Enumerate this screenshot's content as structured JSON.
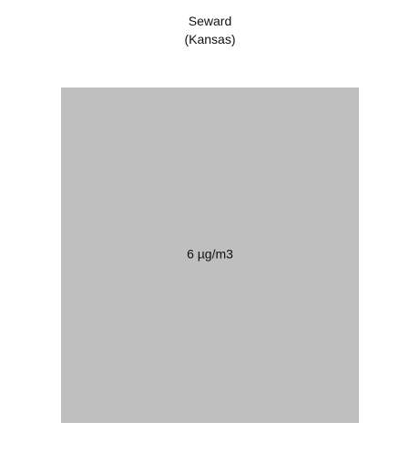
{
  "chart_data": {
    "type": "treemap",
    "title": "Seward",
    "subtitle": "(Kansas)",
    "tiles": [
      {
        "label": "6 µg/m3",
        "value": 6,
        "color": "#bfbfbf"
      }
    ]
  }
}
